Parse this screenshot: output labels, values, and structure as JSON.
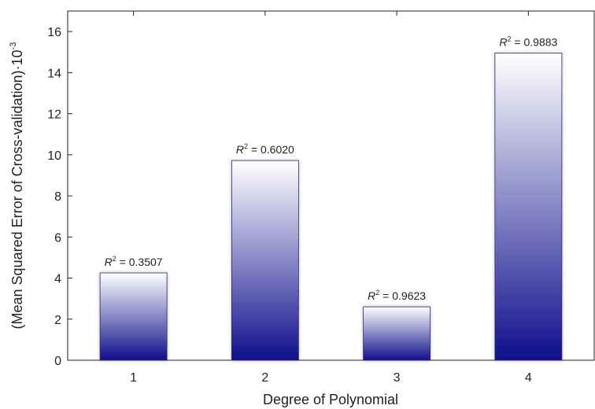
{
  "chart_data": {
    "type": "bar",
    "categories": [
      "1",
      "2",
      "3",
      "4"
    ],
    "values": [
      4.25,
      9.72,
      2.6,
      14.95
    ],
    "data_labels": [
      {
        "var": "R",
        "sup": "2",
        "text": " = 0.3507"
      },
      {
        "var": "R",
        "sup": "2",
        "text": " = 0.6020"
      },
      {
        "var": "R",
        "sup": "2",
        "text": " = 0.9623"
      },
      {
        "var": "R",
        "sup": "2",
        "text": " = 0.9883"
      }
    ],
    "title": "",
    "xlabel": "Degree of Polynomial",
    "ylabel": "(Mean Squared Error of Cross-validation)·10",
    "ylabel_sup": "-3",
    "ylim": [
      0,
      17
    ],
    "yticks": [
      "0",
      "2",
      "4",
      "6",
      "8",
      "10",
      "12",
      "14",
      "16"
    ],
    "grid": false,
    "legend": "none",
    "colors": {
      "bar_top": "#ffffff",
      "bar_bottom": "#0f0f8c",
      "bar_edge": "#2a2a6a",
      "axis": "#222222"
    }
  }
}
